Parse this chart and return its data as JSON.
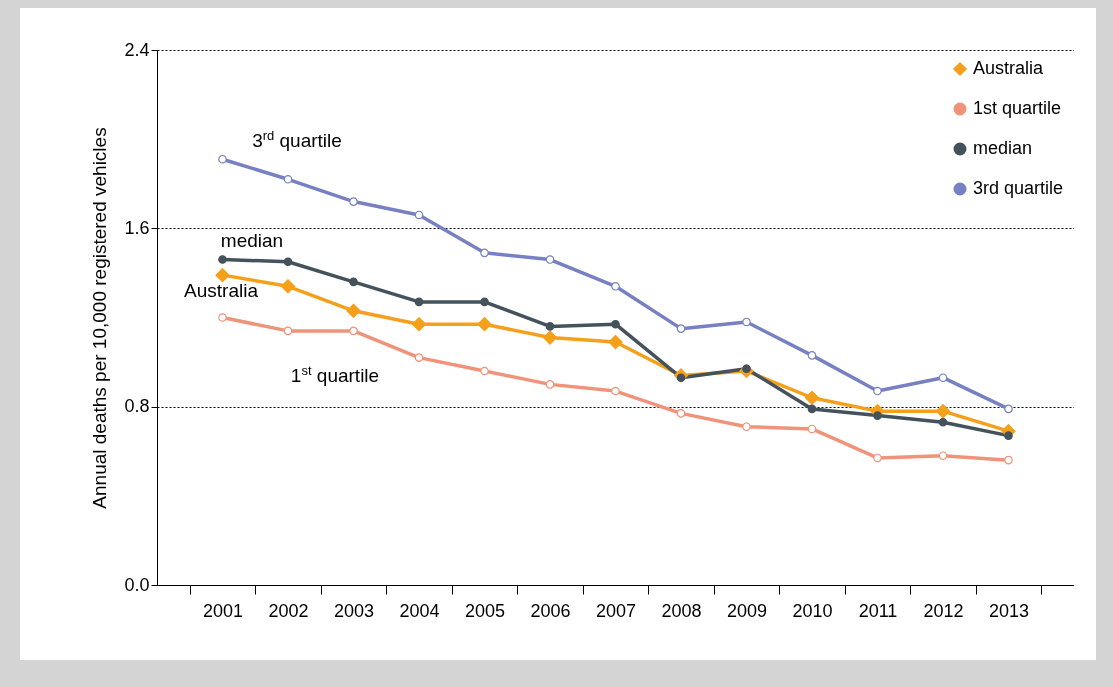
{
  "chart_data": {
    "type": "line",
    "ylabel": "Annual deaths per 10,000 registered vehicles",
    "categories": [
      "2001",
      "2002",
      "2003",
      "2004",
      "2005",
      "2006",
      "2007",
      "2008",
      "2009",
      "2010",
      "2011",
      "2012",
      "2013"
    ],
    "series": [
      {
        "name": "Australia",
        "color": "#f5a01a",
        "marker": "diamond",
        "values": [
          1.39,
          1.34,
          1.23,
          1.17,
          1.17,
          1.11,
          1.09,
          0.94,
          0.96,
          0.84,
          0.78,
          0.78,
          0.69
        ]
      },
      {
        "name": "1st quartile",
        "color": "#f0937a",
        "marker": "circle",
        "values": [
          1.2,
          1.14,
          1.14,
          1.02,
          0.96,
          0.9,
          0.87,
          0.77,
          0.71,
          0.7,
          0.57,
          0.58,
          0.56
        ]
      },
      {
        "name": "median",
        "color": "#44525c",
        "marker": "circle",
        "values": [
          1.46,
          1.45,
          1.36,
          1.27,
          1.27,
          1.16,
          1.17,
          0.93,
          0.97,
          0.79,
          0.76,
          0.73,
          0.67
        ]
      },
      {
        "name": "3rd quartile",
        "color": "#7680c2",
        "marker": "circle",
        "values": [
          1.91,
          1.82,
          1.72,
          1.66,
          1.49,
          1.46,
          1.34,
          1.15,
          1.18,
          1.03,
          0.87,
          0.93,
          0.79
        ]
      }
    ],
    "ylim": [
      0,
      2.4
    ],
    "yticks": [
      {
        "value": 0,
        "label": "0.0"
      },
      0.8,
      1.6,
      2.4
    ],
    "grid": "y",
    "legend": "top right",
    "line_style": "solid",
    "annotations": [
      "3$^{rd}$ quartile",
      "median",
      "Australia",
      "1$^{st}$ quartile"
    ]
  }
}
